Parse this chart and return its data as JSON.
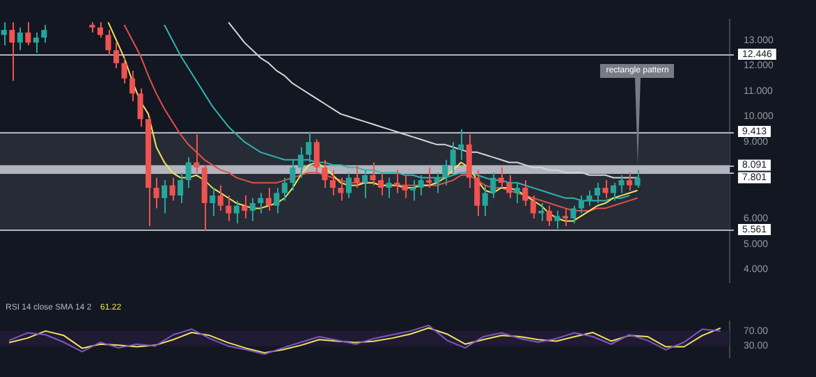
{
  "chart_data": [
    {
      "type": "candlestick",
      "tick_labels": "y",
      "grid": false,
      "legend": false,
      "categories": [
        null,
        null,
        null,
        null,
        null,
        null,
        null,
        null,
        null,
        null,
        null,
        null,
        null,
        null,
        null,
        null,
        null,
        null,
        null,
        null,
        null,
        null,
        null,
        null,
        null,
        null,
        null,
        null,
        null,
        null,
        null,
        null,
        null,
        null,
        null,
        null,
        null,
        null,
        null,
        null,
        null,
        null,
        null,
        null,
        null,
        null,
        null,
        null,
        null,
        null,
        null,
        null,
        null,
        null,
        null,
        null,
        null,
        null,
        null,
        null,
        null,
        null,
        null,
        null,
        null,
        null,
        null,
        null,
        null,
        null,
        null,
        null,
        null,
        null,
        null,
        null,
        null,
        null,
        null,
        null,
        null,
        null,
        null,
        null,
        null,
        null,
        null,
        null,
        null,
        null,
        null
      ],
      "ohlc": [
        [
          13.2,
          13.7,
          12.8,
          13.4
        ],
        [
          13.4,
          13.7,
          11.4,
          12.9
        ],
        [
          12.9,
          13.5,
          12.6,
          13.3
        ],
        [
          13.3,
          13.7,
          12.8,
          12.9
        ],
        [
          12.9,
          13.3,
          12.5,
          13.1
        ],
        [
          13.1,
          13.6,
          12.9,
          13.4
        ],
        null,
        null,
        null,
        null,
        null,
        [
          13.6,
          13.7,
          13.3,
          13.5
        ],
        [
          13.5,
          13.7,
          13.1,
          13.2
        ],
        [
          13.2,
          13.4,
          12.4,
          12.6
        ],
        [
          12.6,
          12.9,
          11.9,
          12.1
        ],
        [
          12.1,
          12.3,
          11.3,
          11.5
        ],
        [
          11.5,
          11.8,
          10.6,
          10.9
        ],
        [
          10.9,
          11.1,
          9.6,
          9.9
        ],
        [
          9.9,
          10.0,
          5.7,
          7.2
        ],
        [
          7.2,
          7.6,
          6.4,
          6.8
        ],
        [
          6.8,
          7.5,
          6.2,
          7.3
        ],
        [
          7.3,
          7.6,
          6.7,
          6.9
        ],
        [
          6.9,
          7.8,
          6.6,
          7.5
        ],
        [
          7.5,
          8.4,
          7.2,
          8.2
        ],
        [
          8.2,
          9.3,
          7.8,
          8.0
        ],
        [
          8.0,
          8.1,
          5.5,
          6.6
        ],
        [
          6.6,
          7.2,
          6.1,
          6.9
        ],
        [
          6.9,
          7.3,
          6.3,
          6.5
        ],
        [
          6.5,
          6.9,
          5.9,
          6.2
        ],
        [
          6.2,
          6.7,
          5.8,
          6.5
        ],
        [
          6.5,
          6.9,
          6.0,
          6.3
        ],
        [
          6.3,
          6.8,
          5.9,
          6.6
        ],
        [
          6.6,
          7.0,
          6.2,
          6.8
        ],
        [
          6.8,
          7.2,
          6.3,
          6.5
        ],
        [
          6.5,
          7.2,
          6.2,
          7.0
        ],
        [
          7.0,
          7.6,
          6.7,
          7.4
        ],
        [
          7.4,
          8.3,
          7.1,
          8.0
        ],
        [
          8.0,
          8.8,
          7.6,
          8.5
        ],
        [
          8.5,
          9.4,
          8.2,
          9.0
        ],
        [
          9.0,
          9.1,
          7.8,
          8.0
        ],
        [
          8.0,
          8.3,
          7.2,
          7.5
        ],
        [
          7.5,
          7.9,
          6.9,
          7.2
        ],
        [
          7.2,
          7.6,
          6.7,
          7.0
        ],
        [
          7.0,
          7.8,
          6.8,
          7.6
        ],
        [
          7.6,
          8.1,
          7.2,
          7.4
        ],
        [
          7.4,
          7.9,
          6.8,
          7.7
        ],
        [
          7.7,
          8.2,
          7.3,
          7.5
        ],
        [
          7.5,
          7.8,
          6.9,
          7.2
        ],
        [
          7.2,
          7.6,
          6.8,
          7.4
        ],
        [
          7.4,
          7.9,
          7.0,
          7.3
        ],
        [
          7.3,
          7.7,
          6.8,
          7.1
        ],
        [
          7.1,
          7.5,
          6.7,
          7.2
        ],
        [
          7.2,
          7.7,
          6.9,
          7.5
        ],
        [
          7.5,
          8.0,
          7.2,
          7.4
        ],
        [
          7.4,
          7.8,
          7.0,
          7.6
        ],
        [
          7.6,
          8.3,
          7.3,
          8.1
        ],
        [
          8.1,
          9.0,
          7.8,
          8.7
        ],
        [
          8.7,
          9.5,
          8.3,
          8.9
        ],
        [
          8.9,
          9.3,
          7.2,
          7.6
        ],
        [
          7.6,
          7.9,
          6.1,
          6.5
        ],
        [
          6.5,
          7.3,
          6.1,
          7.0
        ],
        [
          7.0,
          7.8,
          6.8,
          7.6
        ],
        [
          7.6,
          8.0,
          7.2,
          7.4
        ],
        [
          7.4,
          7.7,
          6.8,
          7.0
        ],
        [
          7.0,
          7.4,
          6.6,
          7.2
        ],
        [
          7.2,
          7.5,
          6.5,
          6.7
        ],
        [
          6.7,
          6.9,
          6.0,
          6.2
        ],
        [
          6.2,
          6.6,
          5.9,
          6.3
        ],
        [
          6.3,
          6.5,
          5.7,
          5.9
        ],
        [
          5.9,
          6.3,
          5.6,
          6.1
        ],
        [
          6.1,
          6.4,
          5.7,
          6.0
        ],
        [
          6.0,
          6.5,
          5.8,
          6.4
        ],
        [
          6.4,
          6.9,
          6.2,
          6.7
        ],
        [
          6.7,
          7.1,
          6.5,
          6.9
        ],
        [
          6.9,
          7.4,
          6.6,
          7.2
        ],
        [
          7.2,
          7.5,
          6.8,
          7.0
        ],
        [
          7.0,
          7.4,
          6.7,
          7.3
        ],
        [
          7.3,
          7.7,
          7.0,
          7.5
        ],
        [
          7.5,
          7.8,
          7.1,
          7.3
        ],
        [
          7.3,
          7.9,
          7.2,
          7.6
        ],
        null,
        null,
        null,
        null,
        null,
        null,
        null,
        null,
        null,
        null,
        null
      ],
      "colors": [
        "#26a69a",
        "#ef5350",
        "#26a69a",
        "#ef5350",
        "#26a69a",
        "#26a69a",
        null,
        null,
        null,
        null,
        null,
        "#ef5350",
        "#ef5350",
        "#ef5350",
        "#ef5350",
        "#ef5350",
        "#ef5350",
        "#ef5350",
        "#ef5350",
        "#ef5350",
        "#26a69a",
        "#ef5350",
        "#26a69a",
        "#26a69a",
        "#ef5350",
        "#ef5350",
        "#26a69a",
        "#ef5350",
        "#ef5350",
        "#26a69a",
        "#ef5350",
        "#26a69a",
        "#26a69a",
        "#ef5350",
        "#26a69a",
        "#26a69a",
        "#26a69a",
        "#26a69a",
        "#26a69a",
        "#ef5350",
        "#ef5350",
        "#ef5350",
        "#ef5350",
        "#26a69a",
        "#ef5350",
        "#26a69a",
        "#ef5350",
        "#ef5350",
        "#26a69a",
        "#ef5350",
        "#ef5350",
        "#26a69a",
        "#26a69a",
        "#ef5350",
        "#26a69a",
        "#26a69a",
        "#26a69a",
        "#26a69a",
        "#ef5350",
        "#ef5350",
        "#26a69a",
        "#26a69a",
        "#ef5350",
        "#ef5350",
        "#26a69a",
        "#ef5350",
        "#ef5350",
        "#26a69a",
        "#ef5350",
        "#26a69a",
        "#ef5350",
        "#26a69a",
        "#26a69a",
        "#26a69a",
        "#26a69a",
        "#ef5350",
        "#26a69a",
        "#26a69a",
        "#ef5350",
        "#26a69a",
        null,
        null,
        null,
        null,
        null,
        null,
        null,
        null,
        null,
        null,
        null
      ],
      "series": [
        {
          "type": "line",
          "color": "#f2e35a",
          "values": [
            null,
            null,
            null,
            null,
            null,
            null,
            null,
            null,
            null,
            null,
            null,
            null,
            null,
            13.7,
            13.0,
            12.3,
            11.4,
            10.6,
            10.1,
            8.8,
            8.2,
            7.8,
            7.6,
            7.6,
            7.7,
            7.5,
            7.2,
            7.0,
            6.8,
            6.6,
            6.5,
            6.4,
            6.4,
            6.5,
            6.6,
            6.8,
            7.2,
            7.7,
            8.1,
            8.2,
            8.0,
            7.7,
            7.4,
            7.3,
            7.3,
            7.4,
            7.4,
            7.3,
            7.3,
            7.3,
            7.2,
            7.2,
            7.3,
            7.3,
            7.4,
            7.6,
            7.9,
            8.2,
            8.0,
            7.5,
            7.1,
            7.0,
            7.2,
            7.2,
            7.1,
            6.9,
            6.7,
            6.5,
            6.2,
            6.0,
            5.9,
            5.9,
            6.1,
            6.3,
            6.5,
            6.6,
            6.8,
            6.9,
            7.0,
            7.1,
            null,
            null,
            null,
            null,
            null,
            null,
            null,
            null,
            null,
            null,
            null
          ]
        },
        {
          "type": "line",
          "color": "#e0504d",
          "values": [
            null,
            null,
            null,
            null,
            null,
            null,
            null,
            null,
            null,
            null,
            null,
            null,
            null,
            null,
            null,
            13.6,
            13.0,
            12.4,
            11.6,
            10.9,
            10.3,
            9.8,
            9.3,
            8.9,
            8.6,
            8.3,
            8.1,
            7.9,
            7.8,
            7.6,
            7.5,
            7.4,
            7.4,
            7.4,
            7.4,
            7.5,
            7.6,
            7.7,
            7.8,
            7.8,
            7.7,
            7.6,
            7.5,
            7.4,
            7.4,
            7.4,
            7.4,
            7.3,
            7.3,
            7.3,
            7.3,
            7.3,
            7.3,
            7.3,
            7.3,
            7.4,
            7.5,
            7.7,
            7.7,
            7.5,
            7.3,
            7.2,
            7.2,
            7.1,
            7.0,
            6.9,
            6.8,
            6.7,
            6.6,
            6.5,
            6.4,
            6.3,
            6.3,
            6.3,
            6.4,
            6.4,
            6.5,
            6.6,
            6.7,
            6.8,
            null,
            null,
            null,
            null,
            null,
            null,
            null,
            null,
            null,
            null,
            null
          ]
        },
        {
          "type": "line",
          "color": "#2fb5b0",
          "values": [
            null,
            null,
            null,
            null,
            null,
            null,
            null,
            null,
            null,
            null,
            null,
            null,
            null,
            null,
            null,
            null,
            null,
            null,
            null,
            null,
            13.6,
            13.0,
            12.4,
            11.9,
            11.4,
            10.9,
            10.4,
            10.0,
            9.6,
            9.3,
            9.0,
            8.8,
            8.6,
            8.5,
            8.4,
            8.3,
            8.3,
            8.3,
            8.3,
            8.2,
            8.2,
            8.1,
            8.1,
            8.0,
            8.0,
            7.9,
            7.9,
            7.8,
            7.8,
            7.8,
            7.7,
            7.7,
            7.6,
            7.6,
            7.6,
            7.6,
            7.7,
            7.8,
            7.8,
            7.7,
            7.6,
            7.5,
            7.5,
            7.4,
            7.4,
            7.3,
            7.2,
            7.1,
            7.0,
            6.9,
            6.8,
            6.8,
            6.7,
            6.7,
            6.7,
            6.7,
            6.8,
            6.8,
            6.9,
            null,
            null,
            null,
            null,
            null,
            null,
            null,
            null,
            null,
            null,
            null,
            null
          ]
        },
        {
          "type": "line",
          "color": "#d6d6d6",
          "values": [
            null,
            null,
            null,
            null,
            null,
            null,
            null,
            null,
            null,
            null,
            null,
            null,
            null,
            null,
            null,
            null,
            null,
            null,
            null,
            null,
            null,
            null,
            null,
            null,
            null,
            null,
            null,
            null,
            13.7,
            13.3,
            12.9,
            12.6,
            12.3,
            12.1,
            11.8,
            11.6,
            11.3,
            11.1,
            10.9,
            10.7,
            10.5,
            10.3,
            10.1,
            10.0,
            9.9,
            9.8,
            9.7,
            9.6,
            9.5,
            9.4,
            9.3,
            9.2,
            9.1,
            9.0,
            8.9,
            8.9,
            8.8,
            8.7,
            8.6,
            8.6,
            8.5,
            8.4,
            8.3,
            8.2,
            8.2,
            8.1,
            8.0,
            8.0,
            7.9,
            7.9,
            7.8,
            7.8,
            7.8,
            7.7,
            7.7,
            7.7,
            7.6,
            7.6,
            7.6,
            7.6,
            null,
            null,
            null,
            null,
            null,
            null,
            null,
            null,
            null,
            null,
            null
          ]
        }
      ],
      "ylim": [
        3.5,
        13.8
      ],
      "yticks": [
        {
          "value": 4,
          "label": "4.000"
        },
        {
          "value": 5,
          "label": "5.000"
        },
        {
          "value": 6,
          "label": "6.000"
        },
        {
          "value": 9,
          "label": "9.000"
        },
        {
          "value": 10,
          "label": "10.000"
        },
        {
          "value": 11,
          "label": "11.000"
        },
        {
          "value": 12,
          "label": "12.000"
        },
        {
          "value": 13,
          "label": "13.000"
        }
      ],
      "ref_lines": [
        {
          "axis": "y",
          "value": 12.446,
          "label": "12.446",
          "color": "#b2b5be"
        },
        {
          "axis": "y",
          "value": 9.413,
          "label": "9.413",
          "color": "#b2b5be"
        },
        {
          "axis": "y",
          "value": 8.091,
          "label": "8.091",
          "color": "#b2b5be"
        },
        {
          "axis": "y",
          "value": 7.801,
          "label": "7.801",
          "color": "#b2b5be"
        },
        {
          "axis": "y",
          "value": 5.561,
          "label": "5.561",
          "color": "#b2b5be"
        }
      ],
      "bands": [
        {
          "axis": "y",
          "from": 5.561,
          "to": 9.413,
          "color": "#272b36"
        },
        {
          "axis": "y",
          "from": 7.801,
          "to": 8.091,
          "color": "#b2b5be"
        }
      ],
      "annotations": [
        "rectangle pattern"
      ]
    },
    {
      "type": "line",
      "tick_labels": "y",
      "grid": false,
      "legend": false,
      "title": "RSI 14 close SMA 14 2",
      "categories": [
        null,
        null,
        null,
        null,
        null,
        null,
        null,
        null,
        null,
        null,
        null,
        null,
        null,
        null,
        null,
        null,
        null,
        null,
        null,
        null,
        null,
        null,
        null,
        null,
        null,
        null,
        null,
        null,
        null,
        null,
        null,
        null,
        null,
        null,
        null,
        null,
        null,
        null,
        null,
        null
      ],
      "series": [
        {
          "type": "line",
          "color": "#7e57c2",
          "values": [
            45,
            65,
            60,
            40,
            15,
            40,
            25,
            35,
            30,
            60,
            75,
            50,
            30,
            20,
            8,
            25,
            40,
            55,
            45,
            35,
            50,
            60,
            70,
            85,
            45,
            25,
            55,
            65,
            50,
            40,
            50,
            65,
            55,
            35,
            60,
            45,
            20,
            40,
            75,
            70
          ]
        },
        {
          "type": "line",
          "color": "#f2e35a",
          "values": [
            39,
            51,
            70,
            58,
            24,
            35,
            32,
            28,
            32,
            47,
            66,
            58,
            39,
            24,
            12,
            20,
            32,
            47,
            43,
            39,
            43,
            51,
            62,
            78,
            62,
            35,
            47,
            58,
            55,
            47,
            43,
            55,
            66,
            43,
            58,
            55,
            28,
            28,
            58,
            78
          ]
        }
      ],
      "ylim": [
        0,
        95
      ],
      "yticks": [
        {
          "value": 30,
          "label": "30.00"
        },
        {
          "value": 70,
          "label": "70.00"
        }
      ],
      "bands": [
        {
          "axis": "y",
          "from": 30,
          "to": 70,
          "color": "#1f1b33"
        }
      ],
      "annotations": [
        "61.22"
      ]
    }
  ]
}
